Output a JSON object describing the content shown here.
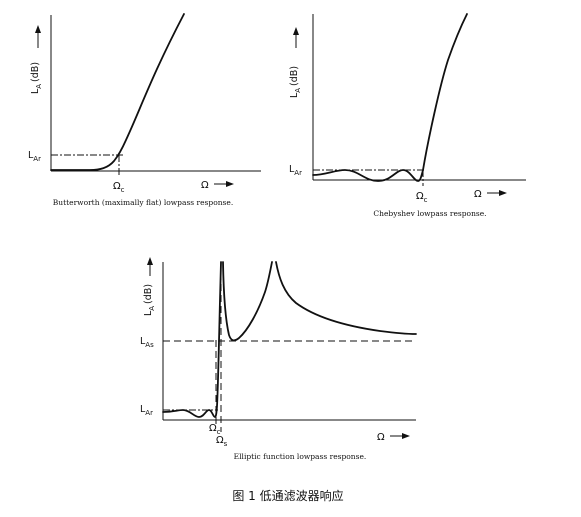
{
  "panels": {
    "butterworth": {
      "y_axis": "L",
      "y_axis_sub": "A",
      "y_axis_unit": "(dB)",
      "ripple_level": "L",
      "ripple_level_sub": "Ar",
      "cutoff": "Ω",
      "cutoff_sub": "c",
      "x_axis": "Ω",
      "caption": "Butterworth (maximally flat) lowpass response."
    },
    "chebyshev": {
      "y_axis": "L",
      "y_axis_sub": "A",
      "y_axis_unit": "(dB)",
      "ripple_level": "L",
      "ripple_level_sub": "Ar",
      "cutoff": "Ω",
      "cutoff_sub": "c",
      "x_axis": "Ω",
      "caption": "Chebyshev lowpass response."
    },
    "elliptic": {
      "y_axis": "L",
      "y_axis_sub": "A",
      "y_axis_unit": "(dB)",
      "stopband_level": "L",
      "stopband_level_sub": "As",
      "ripple_level": "L",
      "ripple_level_sub": "Ar",
      "cutoff": "Ω",
      "cutoff_sub": "c",
      "stopband_edge": "Ω",
      "stopband_edge_sub": "s",
      "x_axis": "Ω",
      "caption": "Elliptic function lowpass response."
    }
  },
  "figure_caption": "图 1 低通滤波器响应"
}
